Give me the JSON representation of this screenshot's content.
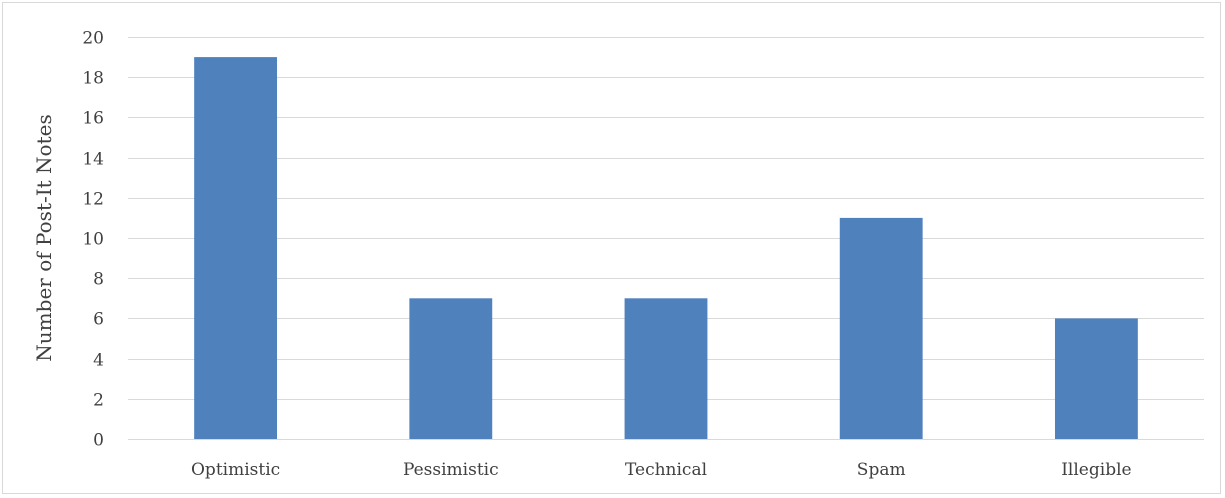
{
  "chart_data": {
    "type": "bar",
    "title": "",
    "xlabel": "",
    "ylabel": "Number of Post-It Notes",
    "categories": [
      "Optimistic",
      "Pessimistic",
      "Technical",
      "Spam",
      "Illegible"
    ],
    "values": [
      19,
      7,
      7,
      11,
      6
    ],
    "ylim": [
      0,
      20
    ],
    "yticks": [
      0,
      2,
      4,
      6,
      8,
      10,
      12,
      14,
      16,
      18,
      20
    ],
    "grid": true,
    "legend": "none",
    "colors": {
      "bar": "#4f81bd",
      "grid": "#d9d9d9",
      "text": "#404040"
    }
  }
}
